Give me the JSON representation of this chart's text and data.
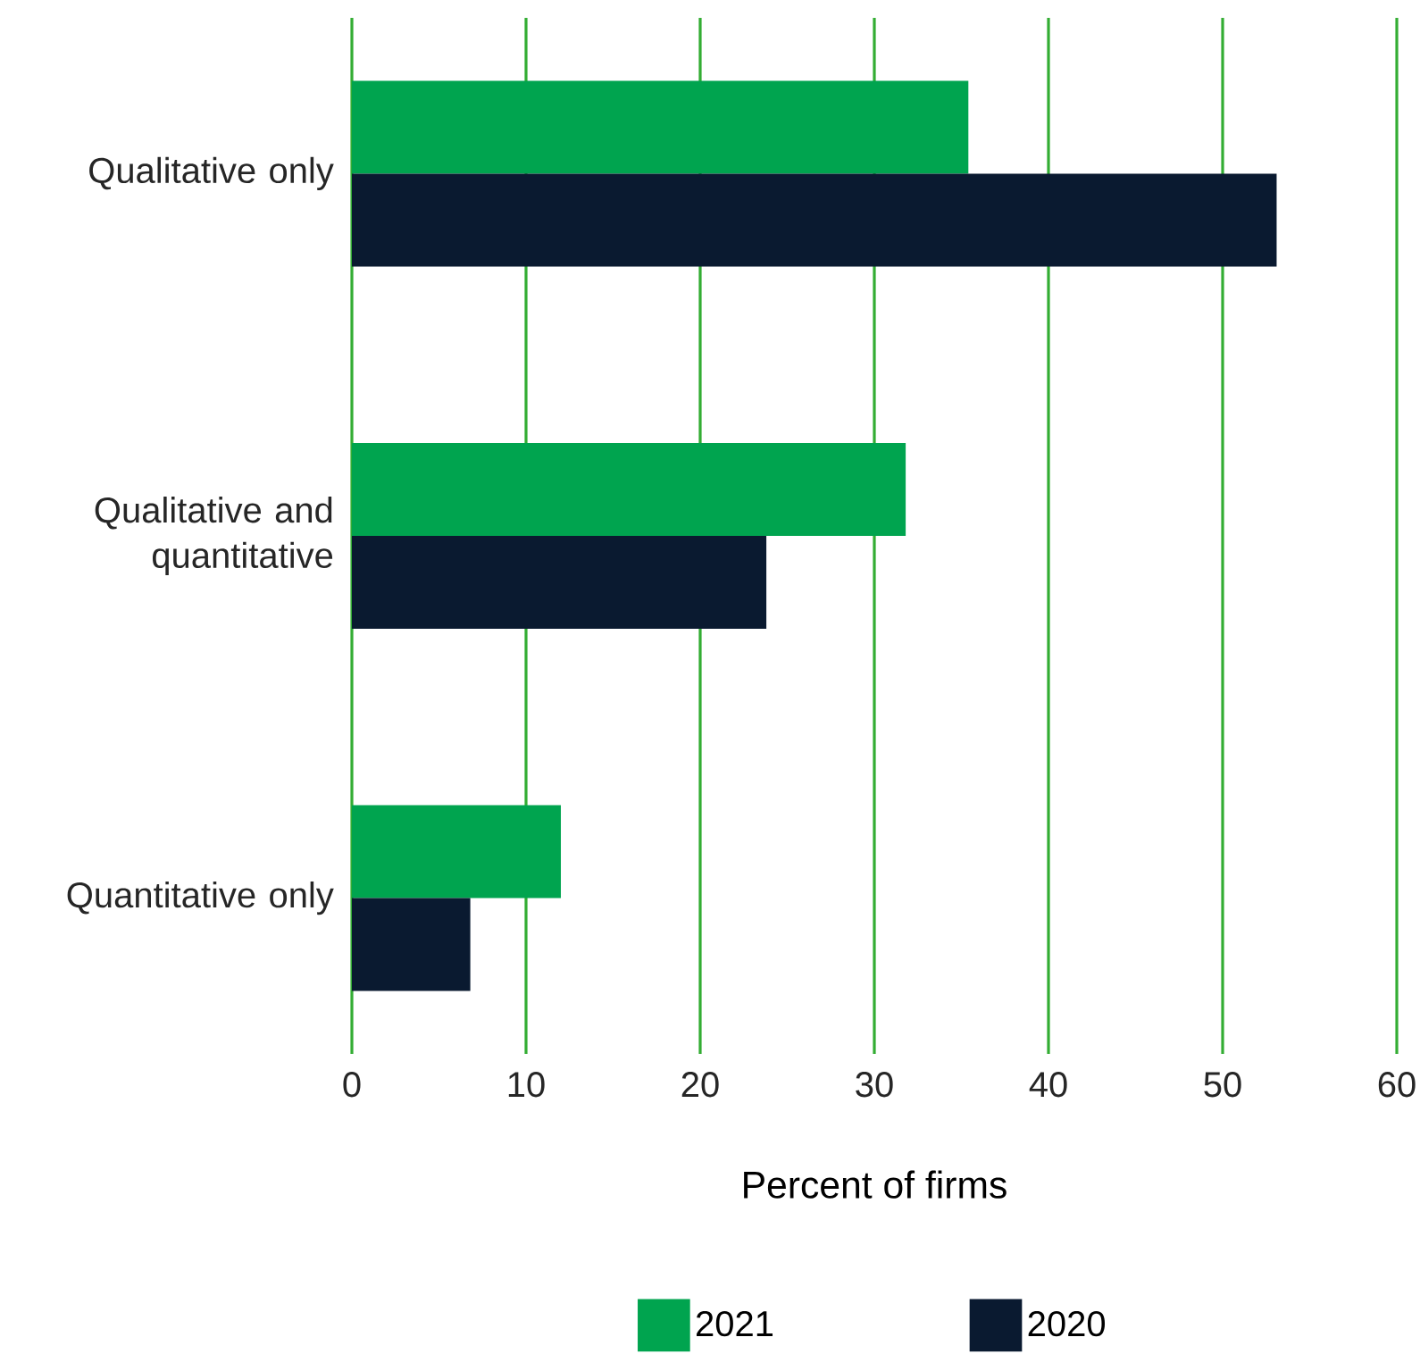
{
  "chart_data": {
    "type": "bar",
    "orientation": "horizontal",
    "xlabel": "Percent of firms",
    "categories": [
      "Qualitative only",
      "Qualitative and quantitative",
      "Quantitative only"
    ],
    "series": [
      {
        "name": "2021",
        "color": "#00a44f",
        "values": [
          35.4,
          31.8,
          12.0
        ]
      },
      {
        "name": "2020",
        "color": "#0a1a30",
        "values": [
          53.1,
          23.8,
          6.8
        ]
      }
    ],
    "xlim": [
      0,
      60
    ],
    "xticks": [
      0,
      10,
      20,
      30,
      40,
      50,
      60
    ],
    "grid": "x",
    "legend": "bottom"
  }
}
